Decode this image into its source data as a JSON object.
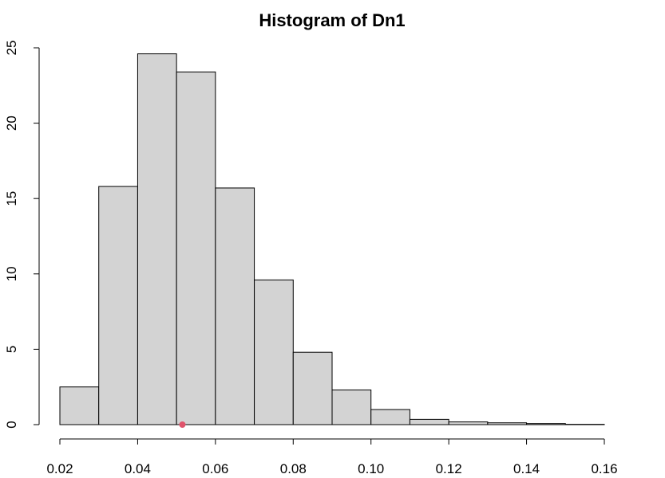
{
  "chart_data": {
    "type": "bar",
    "subtype": "histogram",
    "title": "Histogram of Dn1",
    "xlabel": "",
    "ylabel": "",
    "bin_edges": [
      0.02,
      0.03,
      0.04,
      0.05,
      0.06,
      0.07,
      0.08,
      0.09,
      0.1,
      0.11,
      0.12,
      0.13,
      0.14,
      0.15,
      0.16
    ],
    "values": [
      2.5,
      15.8,
      24.6,
      23.4,
      15.7,
      9.6,
      4.8,
      2.3,
      1.0,
      0.35,
      0.18,
      0.12,
      0.07,
      0.02
    ],
    "xlim": [
      0.02,
      0.16
    ],
    "ylim": [
      0,
      25
    ],
    "x_ticks": [
      "0.02",
      "0.04",
      "0.06",
      "0.08",
      "0.10",
      "0.12",
      "0.14",
      "0.16"
    ],
    "x_tick_values": [
      0.02,
      0.04,
      0.06,
      0.08,
      0.1,
      0.12,
      0.14,
      0.16
    ],
    "y_ticks": [
      "0",
      "5",
      "10",
      "15",
      "20",
      "25"
    ],
    "y_tick_values": [
      0,
      5,
      10,
      15,
      20,
      25
    ],
    "marker": {
      "x": 0.0515,
      "y": 0,
      "color": "#DF536B"
    },
    "bar_fill": "#D3D3D3",
    "grid": false
  }
}
